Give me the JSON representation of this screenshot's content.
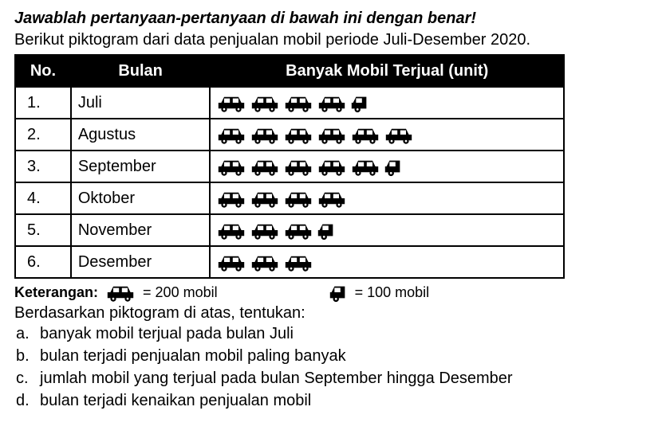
{
  "title": "Jawablah pertanyaan-pertanyaan di bawah ini dengan benar!",
  "intro": "Berikut piktogram dari data penjualan mobil periode Juli-Desember 2020.",
  "columns": {
    "no": "No.",
    "bulan": "Bulan",
    "icons": "Banyak Mobil Terjual (unit)"
  },
  "rows": [
    {
      "no": "1.",
      "bulan": "Juli",
      "full": 4,
      "half": 1
    },
    {
      "no": "2.",
      "bulan": "Agustus",
      "full": 6,
      "half": 0
    },
    {
      "no": "3.",
      "bulan": "September",
      "full": 5,
      "half": 1
    },
    {
      "no": "4.",
      "bulan": "Oktober",
      "full": 4,
      "half": 0
    },
    {
      "no": "5.",
      "bulan": "November",
      "full": 3,
      "half": 1
    },
    {
      "no": "6.",
      "bulan": "Desember",
      "full": 3,
      "half": 0
    }
  ],
  "legend": {
    "label": "Keterangan:",
    "full_text": "= 200 mobil",
    "half_text": "= 100 mobil"
  },
  "question_intro": "Berdasarkan piktogram di atas, tentukan:",
  "questions": [
    {
      "marker": "a.",
      "text": "banyak mobil terjual pada bulan Juli"
    },
    {
      "marker": "b.",
      "text": "bulan terjadi penjualan mobil paling banyak"
    },
    {
      "marker": "c.",
      "text": "jumlah mobil yang terjual pada bulan September hingga Desember"
    },
    {
      "marker": "d.",
      "text": "bulan terjadi kenaikan penjualan mobil"
    }
  ],
  "icon_colors": {
    "fill": "#000000"
  },
  "car_full_svg": "<svg viewBox='0 0 40 28'><path fill='#000' d='M6 14 L10 6 L30 6 L34 14 L38 14 L38 22 L2 22 L2 14 Z'/><rect x='10' y='8' width='8' height='6' fill='#fff'/><rect x='22' y='8' width='8' height='6' fill='#fff'/><circle cx='10' cy='23' r='4' fill='#000'/><circle cx='30' cy='23' r='4' fill='#000'/><circle cx='10' cy='23' r='1.5' fill='#fff'/><circle cx='30' cy='23' r='1.5' fill='#fff'/></svg>",
  "car_half_svg": "<svg viewBox='0 0 22 28'><path fill='#000' d='M2 14 L6 6 L20 6 L20 22 L0 22 L0 14 Z'/><rect x='6' y='8' width='8' height='6' fill='#fff'/><circle cx='8' cy='23' r='4' fill='#000'/><circle cx='8' cy='23' r='1.5' fill='#fff'/></svg>"
}
